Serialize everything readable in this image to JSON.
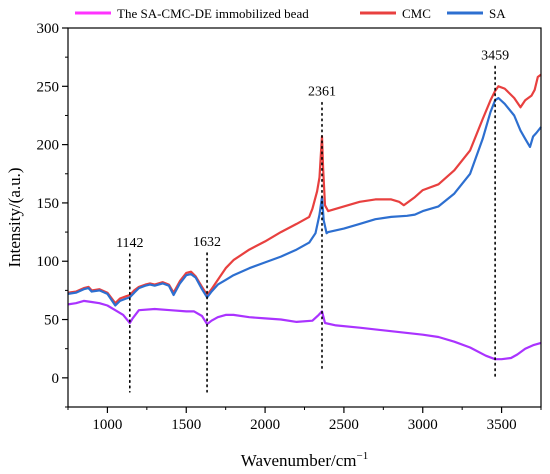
{
  "chart_data": {
    "type": "line",
    "xlabel": "Wavenumber/cm",
    "xlabel_sup": "−1",
    "ylabel": "Intensity/(a.u.)",
    "xlim": [
      750,
      3750
    ],
    "ylim": [
      -25,
      300
    ],
    "xticks": [
      1000,
      1500,
      2000,
      2500,
      3000,
      3500
    ],
    "yticks": [
      0,
      50,
      100,
      150,
      200,
      250,
      300
    ],
    "legend_position": "top",
    "grid": false,
    "series": [
      {
        "name": "The SA-CMC-DE immobilized bead",
        "color": "#aa33ff",
        "legend_color": "#ff33ff",
        "points": [
          [
            750,
            63
          ],
          [
            800,
            64
          ],
          [
            850,
            66
          ],
          [
            900,
            65
          ],
          [
            950,
            64
          ],
          [
            1000,
            62
          ],
          [
            1050,
            58
          ],
          [
            1100,
            54
          ],
          [
            1130,
            49
          ],
          [
            1142,
            47
          ],
          [
            1160,
            51
          ],
          [
            1200,
            58
          ],
          [
            1300,
            59
          ],
          [
            1400,
            58
          ],
          [
            1500,
            57
          ],
          [
            1550,
            57
          ],
          [
            1600,
            53
          ],
          [
            1632,
            46
          ],
          [
            1660,
            49
          ],
          [
            1700,
            52
          ],
          [
            1750,
            54
          ],
          [
            1800,
            54
          ],
          [
            1900,
            52
          ],
          [
            2000,
            51
          ],
          [
            2100,
            50
          ],
          [
            2200,
            48
          ],
          [
            2300,
            49
          ],
          [
            2340,
            54
          ],
          [
            2361,
            57
          ],
          [
            2380,
            47
          ],
          [
            2450,
            45
          ],
          [
            2600,
            43
          ],
          [
            2800,
            40
          ],
          [
            3000,
            37
          ],
          [
            3100,
            35
          ],
          [
            3200,
            31
          ],
          [
            3300,
            26
          ],
          [
            3400,
            19
          ],
          [
            3459,
            16
          ],
          [
            3500,
            16
          ],
          [
            3560,
            17
          ],
          [
            3600,
            20
          ],
          [
            3650,
            25
          ],
          [
            3700,
            28
          ],
          [
            3750,
            30
          ]
        ]
      },
      {
        "name": "CMC",
        "color": "#e8403f",
        "legend_color": "#e8403f",
        "points": [
          [
            750,
            73
          ],
          [
            800,
            74
          ],
          [
            850,
            77
          ],
          [
            880,
            78
          ],
          [
            900,
            75
          ],
          [
            950,
            76
          ],
          [
            1000,
            73
          ],
          [
            1050,
            64
          ],
          [
            1080,
            68
          ],
          [
            1120,
            70
          ],
          [
            1142,
            71
          ],
          [
            1170,
            75
          ],
          [
            1200,
            78
          ],
          [
            1240,
            80
          ],
          [
            1270,
            81
          ],
          [
            1300,
            80
          ],
          [
            1350,
            82
          ],
          [
            1390,
            80
          ],
          [
            1420,
            73
          ],
          [
            1460,
            83
          ],
          [
            1500,
            90
          ],
          [
            1530,
            91
          ],
          [
            1560,
            87
          ],
          [
            1600,
            78
          ],
          [
            1632,
            71
          ],
          [
            1660,
            76
          ],
          [
            1700,
            84
          ],
          [
            1750,
            94
          ],
          [
            1800,
            101
          ],
          [
            1900,
            110
          ],
          [
            2000,
            117
          ],
          [
            2100,
            125
          ],
          [
            2200,
            132
          ],
          [
            2280,
            138
          ],
          [
            2300,
            145
          ],
          [
            2330,
            160
          ],
          [
            2345,
            172
          ],
          [
            2355,
            195
          ],
          [
            2361,
            207
          ],
          [
            2368,
            180
          ],
          [
            2380,
            148
          ],
          [
            2400,
            143
          ],
          [
            2500,
            147
          ],
          [
            2600,
            151
          ],
          [
            2700,
            153
          ],
          [
            2800,
            153
          ],
          [
            2850,
            151
          ],
          [
            2880,
            148
          ],
          [
            2950,
            155
          ],
          [
            3000,
            161
          ],
          [
            3100,
            166
          ],
          [
            3200,
            178
          ],
          [
            3300,
            195
          ],
          [
            3380,
            222
          ],
          [
            3430,
            238
          ],
          [
            3459,
            246
          ],
          [
            3480,
            250
          ],
          [
            3520,
            248
          ],
          [
            3580,
            240
          ],
          [
            3620,
            232
          ],
          [
            3650,
            238
          ],
          [
            3690,
            242
          ],
          [
            3710,
            247
          ],
          [
            3730,
            258
          ],
          [
            3750,
            260
          ]
        ]
      },
      {
        "name": "SA",
        "color": "#2d6fd0",
        "legend_color": "#2d6fd0",
        "points": [
          [
            750,
            72
          ],
          [
            800,
            73
          ],
          [
            850,
            76
          ],
          [
            880,
            77
          ],
          [
            900,
            74
          ],
          [
            950,
            75
          ],
          [
            1000,
            72
          ],
          [
            1050,
            62
          ],
          [
            1080,
            66
          ],
          [
            1120,
            68
          ],
          [
            1142,
            69
          ],
          [
            1170,
            73
          ],
          [
            1200,
            77
          ],
          [
            1240,
            79
          ],
          [
            1270,
            80
          ],
          [
            1300,
            79
          ],
          [
            1350,
            81
          ],
          [
            1390,
            79
          ],
          [
            1420,
            71
          ],
          [
            1460,
            81
          ],
          [
            1500,
            88
          ],
          [
            1530,
            89
          ],
          [
            1560,
            86
          ],
          [
            1600,
            76
          ],
          [
            1632,
            69
          ],
          [
            1660,
            74
          ],
          [
            1700,
            80
          ],
          [
            1750,
            84
          ],
          [
            1800,
            88
          ],
          [
            1900,
            94
          ],
          [
            2000,
            99
          ],
          [
            2100,
            104
          ],
          [
            2200,
            110
          ],
          [
            2280,
            116
          ],
          [
            2320,
            124
          ],
          [
            2345,
            140
          ],
          [
            2361,
            155
          ],
          [
            2372,
            135
          ],
          [
            2390,
            124
          ],
          [
            2400,
            125
          ],
          [
            2500,
            128
          ],
          [
            2600,
            132
          ],
          [
            2700,
            136
          ],
          [
            2800,
            138
          ],
          [
            2900,
            139
          ],
          [
            2950,
            140
          ],
          [
            3000,
            143
          ],
          [
            3100,
            147
          ],
          [
            3200,
            158
          ],
          [
            3300,
            175
          ],
          [
            3380,
            205
          ],
          [
            3430,
            228
          ],
          [
            3459,
            238
          ],
          [
            3480,
            240
          ],
          [
            3520,
            235
          ],
          [
            3580,
            225
          ],
          [
            3620,
            212
          ],
          [
            3650,
            205
          ],
          [
            3680,
            198
          ],
          [
            3700,
            207
          ],
          [
            3720,
            210
          ],
          [
            3750,
            215
          ]
        ]
      }
    ],
    "annotations": [
      {
        "label": "1142",
        "x": 1142,
        "y_top": 106,
        "y_bottom": -12
      },
      {
        "label": "1632",
        "x": 1632,
        "y_top": 107,
        "y_bottom": -12
      },
      {
        "label": "2361",
        "x": 2361,
        "y_top": 236,
        "y_bottom": 6
      },
      {
        "label": "3459",
        "x": 3459,
        "y_top": 267,
        "y_bottom": 0
      }
    ]
  }
}
